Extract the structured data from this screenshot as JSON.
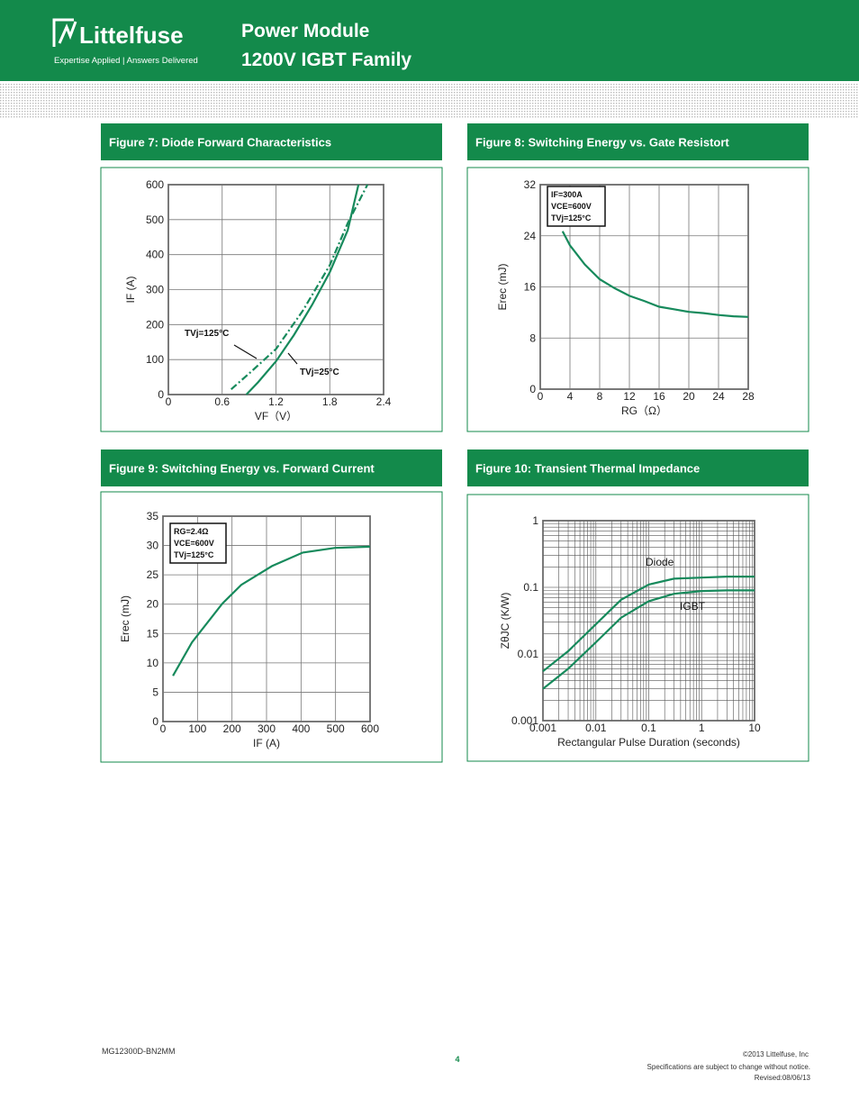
{
  "header": {
    "brand": "Littelfuse",
    "tagline": "Expertise Applied | Answers Delivered",
    "title": "Power Module",
    "subtitle": "1200V IGBT Family"
  },
  "footer": {
    "part": "MG12300D-BN2MM",
    "page": "4",
    "copyright": "©2013 Littelfuse, Inc",
    "notice": "Specifications are subject to change without notice.",
    "revised": "Revised:08/06/13"
  },
  "chart_data": [
    {
      "type": "line",
      "title": "Figure 7:  Diode Forward Characteristics",
      "x_label": "VF（V）",
      "y_label": "IF (A)",
      "xlim": [
        0,
        2.4
      ],
      "xticks": [
        0,
        0.6,
        1.2,
        1.8,
        2.4
      ],
      "ylim": [
        0,
        600
      ],
      "yticks": [
        0,
        100,
        200,
        300,
        400,
        500,
        600
      ],
      "grid": true,
      "series": [
        {
          "name": "TVj=125°C",
          "color": "#178a5c",
          "style": "dash-dot",
          "x": [
            0.7,
            0.9,
            1.2,
            1.5,
            1.8,
            2.0,
            2.22
          ],
          "values": [
            15,
            60,
            130,
            240,
            370,
            490,
            600
          ]
        },
        {
          "name": "TVj=25°C",
          "color": "#178a5c",
          "style": "solid",
          "x": [
            0.87,
            1.0,
            1.2,
            1.4,
            1.6,
            1.8,
            2.0,
            2.12
          ],
          "values": [
            0,
            35,
            95,
            170,
            255,
            350,
            470,
            600
          ]
        }
      ]
    },
    {
      "type": "line",
      "title": "Figure 8: Switching Energy vs. Gate Resistort",
      "x_label": "RG（Ω）",
      "y_label": "Erec (mJ)",
      "xlim": [
        0,
        28
      ],
      "xticks": [
        0,
        4,
        8,
        12,
        16,
        20,
        24,
        28
      ],
      "ylim": [
        0,
        32
      ],
      "yticks": [
        0,
        8,
        16,
        24,
        32
      ],
      "grid": true,
      "annotation": [
        "IF=300A",
        "VCE=600V",
        "TVj=125°C"
      ],
      "series": [
        {
          "color": "#178a5c",
          "style": "solid",
          "x": [
            3,
            4,
            6,
            8,
            10,
            12,
            14,
            16,
            18,
            20,
            22,
            24,
            26,
            28
          ],
          "values": [
            24.7,
            22.5,
            19.5,
            17.2,
            15.8,
            14.6,
            13.8,
            12.9,
            12.5,
            12.1,
            11.9,
            11.6,
            11.4,
            11.3
          ]
        }
      ]
    },
    {
      "type": "line",
      "title": "Figure 9: Switching Energy vs. Forward Current",
      "x_label": "IF (A)",
      "y_label": "Erec (mJ)",
      "xlim": [
        0,
        600
      ],
      "xticks": [
        0,
        100,
        200,
        300,
        400,
        500,
        600
      ],
      "ylim": [
        0,
        35
      ],
      "yticks": [
        0,
        5,
        10,
        15,
        20,
        25,
        30,
        35
      ],
      "grid": true,
      "annotation": [
        "RG=2.4Ω",
        "VCE=600V",
        "TVj=125°C"
      ],
      "series": [
        {
          "color": "#178a5c",
          "style": "solid",
          "x": [
            29,
            84,
            172,
            227,
            316,
            405,
            499,
            600
          ],
          "values": [
            7.8,
            13.5,
            20.1,
            23.3,
            26.5,
            28.8,
            29.6,
            29.8
          ]
        }
      ]
    },
    {
      "type": "line",
      "title": "Figure 10: Transient Thermal Impedance",
      "x_label": "Rectangular Pulse Duration (seconds)",
      "y_label": "ZθJC (K/W)",
      "xlog": true,
      "ylog": true,
      "xlim": [
        0.001,
        10
      ],
      "xticks": [
        0.001,
        0.01,
        0.1,
        1,
        10
      ],
      "ylim": [
        0.001,
        1
      ],
      "yticks": [
        0.001,
        0.01,
        0.1,
        1
      ],
      "grid": true,
      "series": [
        {
          "name": "Diode",
          "color": "#178a5c",
          "style": "solid",
          "x": [
            0.001,
            0.003,
            0.01,
            0.03,
            0.1,
            0.3,
            1,
            3,
            10
          ],
          "values": [
            0.0055,
            0.011,
            0.028,
            0.065,
            0.11,
            0.135,
            0.14,
            0.145,
            0.145
          ]
        },
        {
          "name": "IGBT",
          "color": "#178a5c",
          "style": "solid",
          "x": [
            0.001,
            0.003,
            0.01,
            0.03,
            0.1,
            0.3,
            1,
            3,
            10
          ],
          "values": [
            0.003,
            0.006,
            0.015,
            0.035,
            0.062,
            0.08,
            0.088,
            0.09,
            0.09
          ]
        }
      ]
    }
  ]
}
